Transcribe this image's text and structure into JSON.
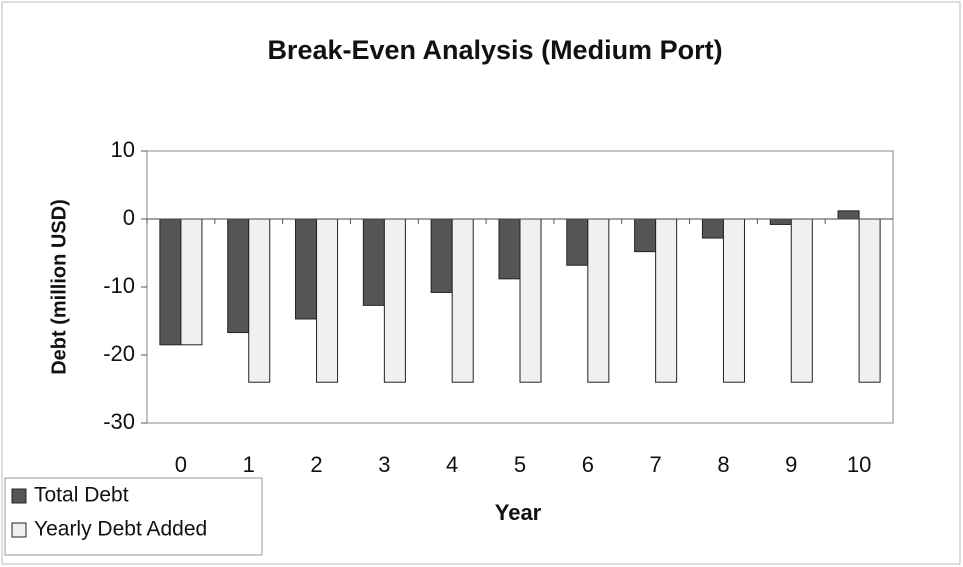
{
  "chart_data": {
    "type": "bar",
    "title": "Break-Even Analysis (Medium Port)",
    "x_label": "Year",
    "y_label": "Debt (million USD)",
    "categories": [
      "0",
      "1",
      "2",
      "3",
      "4",
      "5",
      "6",
      "7",
      "8",
      "9",
      "10"
    ],
    "series": [
      {
        "name": "Total Debt",
        "color": "#555555",
        "values": [
          -18.5,
          -16.7,
          -14.7,
          -12.7,
          -10.8,
          -8.8,
          -6.8,
          -4.8,
          -2.8,
          -0.8,
          1.2
        ]
      },
      {
        "name": "Yearly Debt Added",
        "color": "#f0f0f0",
        "values": [
          -18.5,
          -24,
          -24,
          -24,
          -24,
          -24,
          -24,
          -24,
          -24,
          -24,
          -24
        ]
      }
    ],
    "ylim": [
      -30,
      10
    ],
    "yticks": [
      10,
      0,
      -10,
      -20,
      -30
    ],
    "grid": false,
    "legend": "bottom-left"
  }
}
